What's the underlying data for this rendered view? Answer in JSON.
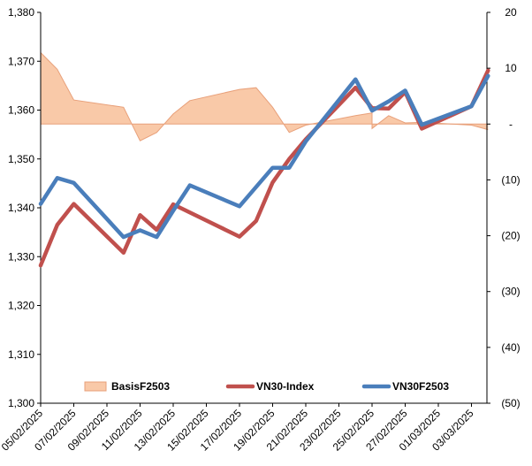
{
  "chart_data": {
    "type": "line",
    "dates": [
      "05/02/2025",
      "06/02/2025",
      "07/02/2025",
      "10/02/2025",
      "11/02/2025",
      "12/02/2025",
      "13/02/2025",
      "14/02/2025",
      "17/02/2025",
      "18/02/2025",
      "19/02/2025",
      "20/02/2025",
      "21/02/2025",
      "24/02/2025",
      "25/02/2025",
      "26/02/2025",
      "27/02/2025",
      "28/02/2025",
      "03/03/2025",
      "04/03/2025"
    ],
    "x_tick_labels": [
      "05/02/2025",
      "07/02/2025",
      "09/02/2025",
      "11/02/2025",
      "13/02/2025",
      "15/02/2025",
      "17/02/2025",
      "19/02/2025",
      "21/02/2025",
      "23/02/2025",
      "25/02/2025",
      "27/02/2025",
      "01/03/2025",
      "03/03/2025"
    ],
    "y_left": {
      "min": 1300,
      "max": 1380,
      "step": 10,
      "tick_labels": [
        "1,300",
        "1,310",
        "1,320",
        "1,330",
        "1,340",
        "1,350",
        "1,360",
        "1,370",
        "1,380"
      ]
    },
    "y_right": {
      "min": -50,
      "max": 20,
      "step": 10,
      "tick_labels": [
        "(50)",
        "(40)",
        "(30)",
        "(20)",
        "(10)",
        "-",
        "10",
        "20"
      ]
    },
    "legend_position": "bottom",
    "series": [
      {
        "name": "BasisF2503",
        "kind": "area",
        "axis": "right",
        "color": "#f9c9a8",
        "edge_color": "#e8a07a",
        "points": [
          [
            "05/02/2025",
            12.8
          ],
          [
            "05/02/2025",
            12.8
          ],
          [
            "06/02/2025",
            9.8
          ],
          [
            "07/02/2025",
            4.3
          ],
          [
            "10/02/2025",
            3.0
          ],
          [
            "11/02/2025",
            -3.0
          ],
          [
            "12/02/2025",
            -1.5
          ],
          [
            "13/02/2025",
            1.8
          ],
          [
            "14/02/2025",
            4.2
          ],
          [
            "17/02/2025",
            6.2
          ],
          [
            "18/02/2025",
            6.5
          ],
          [
            "19/02/2025",
            3.0
          ],
          [
            "20/02/2025",
            -1.5
          ],
          [
            "21/02/2025",
            -0.2
          ],
          [
            "24/02/2025",
            1.5
          ],
          [
            "25/02/2025",
            2.0
          ],
          [
            "25/02/2025",
            -0.8
          ],
          [
            "26/02/2025",
            1.5
          ],
          [
            "27/02/2025",
            0.2
          ],
          [
            "28/02/2025",
            0.3
          ],
          [
            "03/03/2025",
            -0.2
          ],
          [
            "04/03/2025",
            -1.0
          ]
        ]
      },
      {
        "name": "VN30-Index",
        "kind": "line",
        "axis": "left",
        "color": "#c0504d",
        "points": [
          [
            "05/02/2025",
            1328.2
          ],
          [
            "06/02/2025",
            1336.5
          ],
          [
            "07/02/2025",
            1340.8
          ],
          [
            "10/02/2025",
            1330.8
          ],
          [
            "11/02/2025",
            1338.5
          ],
          [
            "12/02/2025",
            1335.5
          ],
          [
            "13/02/2025",
            1340.7
          ],
          [
            "17/02/2025",
            1334.1
          ],
          [
            "18/02/2025",
            1337.3
          ],
          [
            "19/02/2025",
            1345.2
          ],
          [
            "20/02/2025",
            1350.0
          ],
          [
            "21/02/2025",
            1354.0
          ],
          [
            "24/02/2025",
            1364.6
          ],
          [
            "25/02/2025",
            1360.4
          ],
          [
            "26/02/2025",
            1360.3
          ],
          [
            "27/02/2025",
            1363.7
          ],
          [
            "28/02/2025",
            1356.2
          ],
          [
            "03/03/2025",
            1360.8
          ],
          [
            "04/03/2025",
            1368.1
          ]
        ]
      },
      {
        "name": "VN30F2503",
        "kind": "line",
        "axis": "left",
        "color": "#4a7ebb",
        "points": [
          [
            "05/02/2025",
            1340.8
          ],
          [
            "06/02/2025",
            1346.1
          ],
          [
            "07/02/2025",
            1345.1
          ],
          [
            "10/02/2025",
            1334.0
          ],
          [
            "11/02/2025",
            1335.4
          ],
          [
            "12/02/2025",
            1334.0
          ],
          [
            "13/02/2025",
            1339.4
          ],
          [
            "14/02/2025",
            1344.6
          ],
          [
            "17/02/2025",
            1340.3
          ],
          [
            "19/02/2025",
            1348.2
          ],
          [
            "20/02/2025",
            1348.2
          ],
          [
            "21/02/2025",
            1353.6
          ],
          [
            "24/02/2025",
            1366.3
          ],
          [
            "25/02/2025",
            1359.9
          ],
          [
            "26/02/2025",
            1361.8
          ],
          [
            "27/02/2025",
            1364.0
          ],
          [
            "28/02/2025",
            1357.0
          ],
          [
            "03/03/2025",
            1360.8
          ],
          [
            "04/03/2025",
            1367.0
          ]
        ]
      }
    ]
  }
}
